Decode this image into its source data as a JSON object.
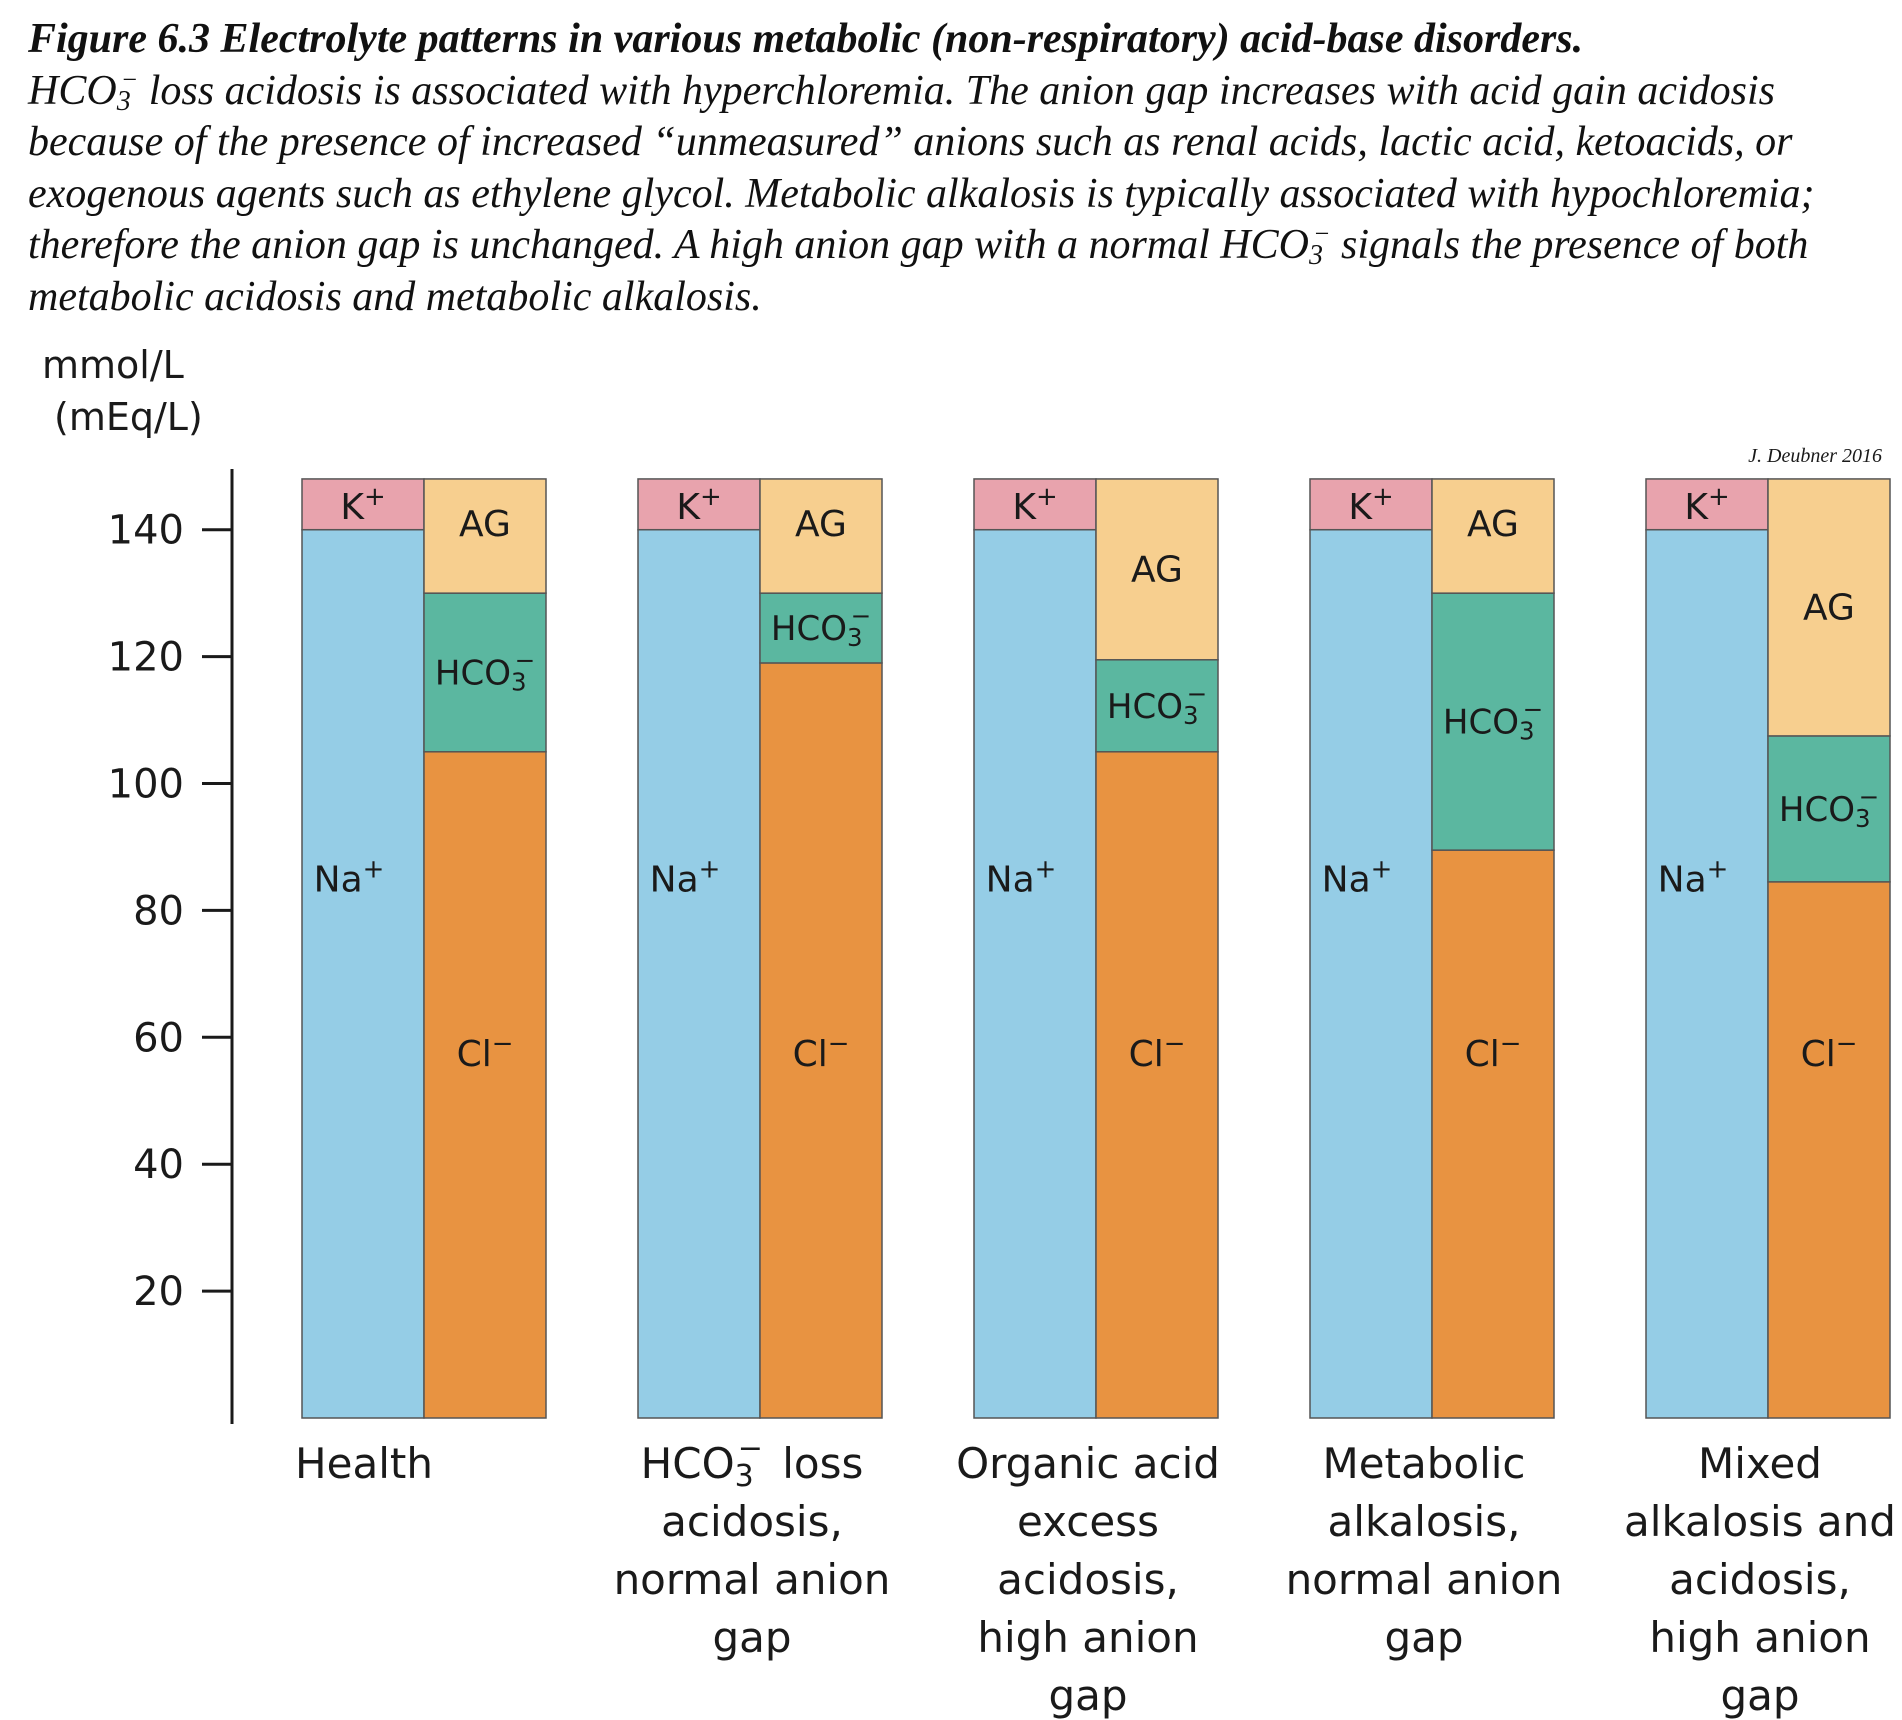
{
  "caption": {
    "title": "Figure 6.3 Electrolyte patterns in various metabolic (non-respiratory) acid-base disorders.",
    "body_parts": [
      {
        "t": "HCO"
      },
      {
        "t": "3",
        "sub": true
      },
      {
        "t": "−",
        "sup": true
      },
      {
        "t": " loss acidosis is associated with hyperchloremia.  The anion gap increases with acid gain acidosis because of the presence of increased “unmeasured” anions such as renal acids, lactic acid, ketoacids, or exogenous agents such as ethylene glycol. Metabolic alkalosis is typically associated with hypochloremia; therefore the anion gap is unchanged. A high anion gap with a normal HCO"
      },
      {
        "t": "3",
        "sub": true
      },
      {
        "t": "−",
        "sup": true
      },
      {
        "t": " signals the presence of both metabolic acidosis and metabolic alkalosis."
      }
    ]
  },
  "credit": "J. Deubner 2016",
  "chart_data": {
    "type": "bar",
    "subtype": "paired stacked bars (cations vs anions)",
    "ylabel": [
      "mmol/L",
      "(mEq/L)"
    ],
    "ylim": [
      0,
      148
    ],
    "yticks": [
      20,
      40,
      60,
      80,
      100,
      120,
      140
    ],
    "grid": false,
    "colors": {
      "Na": "#95cde6",
      "K": "#e8a3ad",
      "Cl": "#e89341",
      "HCO3": "#5bb7a0",
      "AG": "#f7cf8f"
    },
    "segment_labels": {
      "Na": "Na+",
      "K": "K+",
      "Cl": "Cl−",
      "HCO3": "HCO3−",
      "AG": "AG"
    },
    "groups": [
      {
        "category": [
          "Health"
        ],
        "cations": [
          {
            "ion": "Na",
            "value": 140
          },
          {
            "ion": "K",
            "value": 8
          }
        ],
        "anions": [
          {
            "ion": "Cl",
            "value": 105
          },
          {
            "ion": "HCO3",
            "value": 25
          },
          {
            "ion": "AG",
            "value": 18
          }
        ]
      },
      {
        "category": [
          "HCO3− loss",
          "acidosis,",
          "normal anion",
          "gap"
        ],
        "cations": [
          {
            "ion": "Na",
            "value": 140
          },
          {
            "ion": "K",
            "value": 8
          }
        ],
        "anions": [
          {
            "ion": "Cl",
            "value": 119
          },
          {
            "ion": "HCO3",
            "value": 11
          },
          {
            "ion": "AG",
            "value": 18
          }
        ]
      },
      {
        "category": [
          "Organic acid",
          "excess",
          "acidosis,",
          "high anion",
          "gap"
        ],
        "cations": [
          {
            "ion": "Na",
            "value": 140
          },
          {
            "ion": "K",
            "value": 8
          }
        ],
        "anions": [
          {
            "ion": "Cl",
            "value": 105
          },
          {
            "ion": "HCO3",
            "value": 14.5
          },
          {
            "ion": "AG",
            "value": 28.5
          }
        ]
      },
      {
        "category": [
          "Metabolic",
          "alkalosis,",
          "normal anion",
          "gap"
        ],
        "cations": [
          {
            "ion": "Na",
            "value": 140
          },
          {
            "ion": "K",
            "value": 8
          }
        ],
        "anions": [
          {
            "ion": "Cl",
            "value": 89.5
          },
          {
            "ion": "HCO3",
            "value": 40.5
          },
          {
            "ion": "AG",
            "value": 18
          }
        ]
      },
      {
        "category": [
          "Mixed",
          "alkalosis and",
          "acidosis,",
          "high anion",
          "gap"
        ],
        "cations": [
          {
            "ion": "Na",
            "value": 140
          },
          {
            "ion": "K",
            "value": 8
          }
        ],
        "anions": [
          {
            "ion": "Cl",
            "value": 84.5
          },
          {
            "ion": "HCO3",
            "value": 23
          },
          {
            "ion": "AG",
            "value": 40.5
          }
        ]
      }
    ]
  }
}
